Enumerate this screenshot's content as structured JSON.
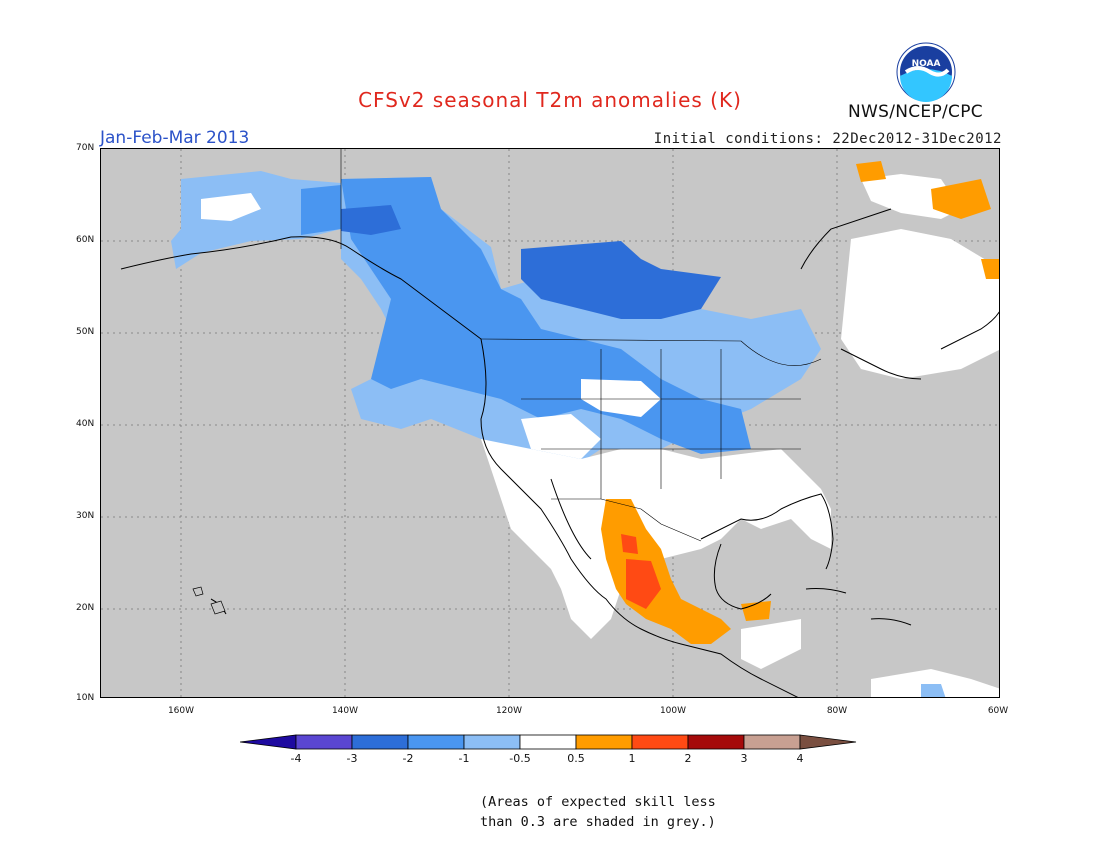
{
  "title": "CFSv2 seasonal T2m anomalies (K)",
  "period": "Jan-Feb-Mar 2013",
  "initial_conditions": "Initial conditions: 22Dec2012-31Dec2012",
  "agency": "NWS/NCEP/CPC",
  "logo_text": "NOAA",
  "lat_labels": [
    "70N",
    "60N",
    "50N",
    "40N",
    "30N",
    "20N",
    "10N"
  ],
  "lon_labels": [
    "160W",
    "140W",
    "120W",
    "100W",
    "80W",
    "60W"
  ],
  "colorbar": {
    "labels": [
      "-4",
      "-3",
      "-2",
      "-1",
      "-0.5",
      "0.5",
      "1",
      "2",
      "3",
      "4"
    ],
    "colors": [
      "#1e0aa0",
      "#5a46d2",
      "#2d6ed8",
      "#4a96f0",
      "#8cbef5",
      "#ffffff",
      "#ff9c00",
      "#ff4a14",
      "#a50a0a",
      "#c8a092",
      "#7a4f40"
    ]
  },
  "note": {
    "line1": "(Areas of expected skill less",
    "line2": "than 0.3 are shaded in grey.)"
  },
  "colors": {
    "skill_grey": "#c7c7c7",
    "title_red": "#e0281e",
    "period_blue": "#2b52c8"
  }
}
